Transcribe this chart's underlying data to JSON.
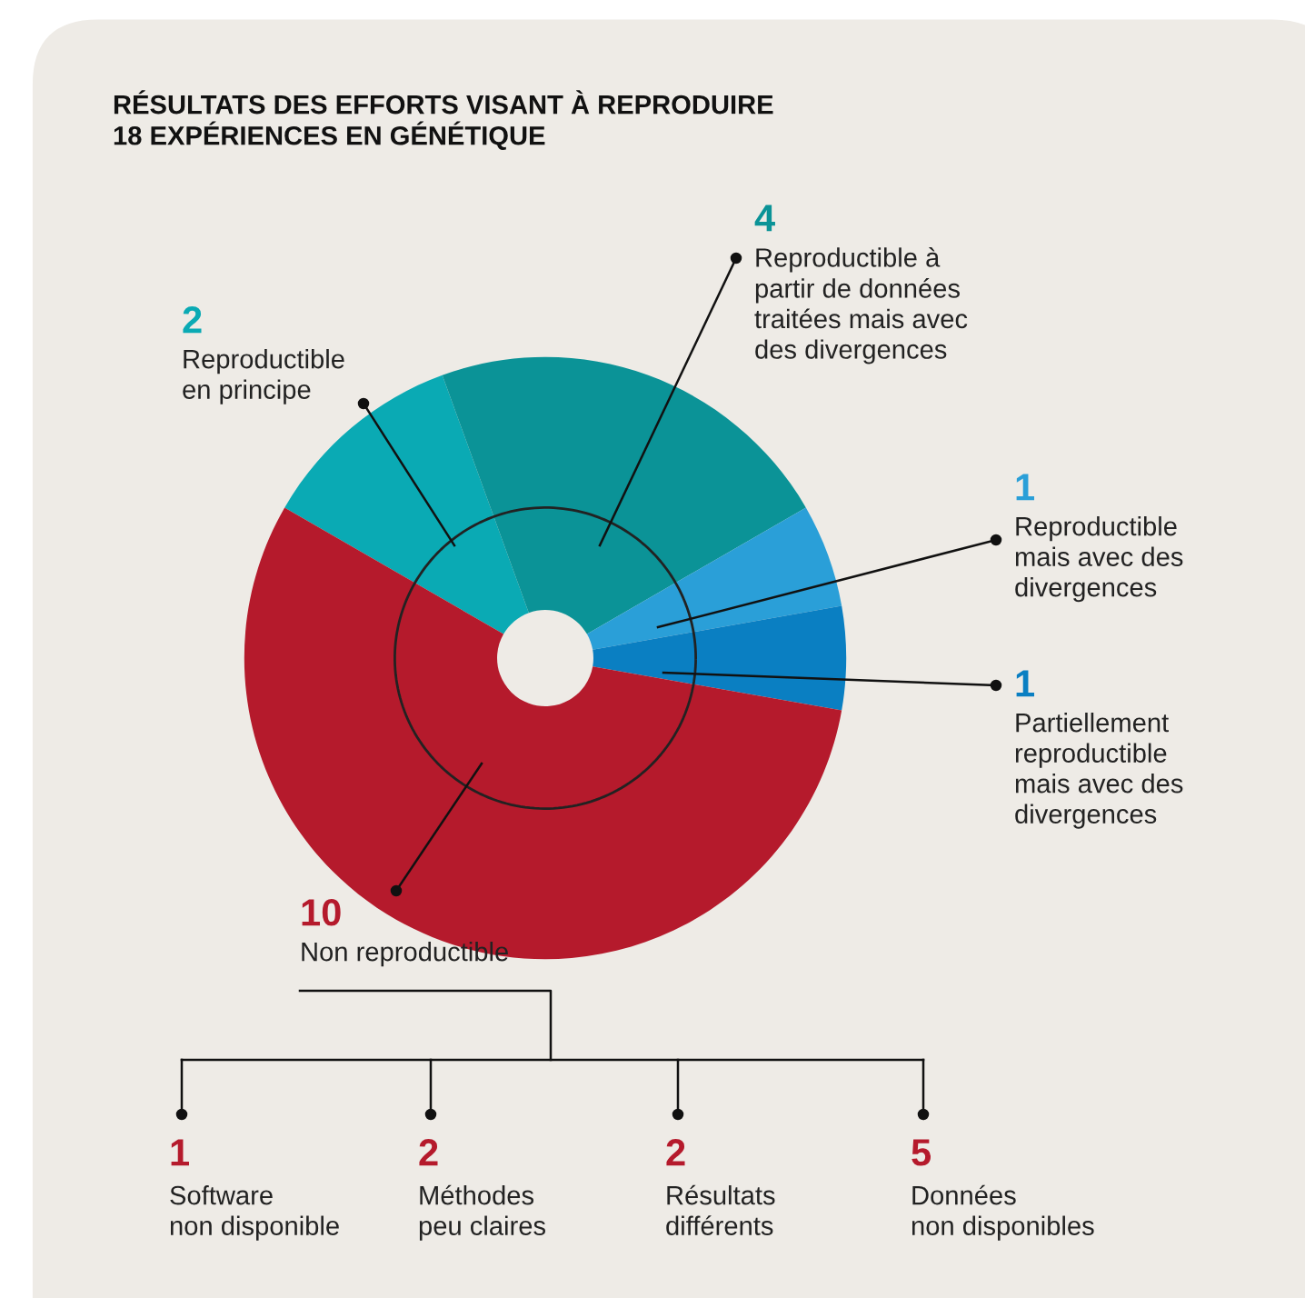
{
  "chart_data": {
    "type": "donut",
    "title": "RÉSULTATS DES EFFORTS VISANT À REPRODUIRE\n18 EXPÉRIENCES EN GÉNÉTIQUE",
    "categories": [
      "Reproductible\nen principe",
      "Reproductible à\npartir de données\ntraitées mais avec\ndes divergences",
      "Reproductible\nmais avec des\ndivergences",
      "Partiellement\nreproductible\nmais avec des\ndivergences",
      "Non reproductible"
    ],
    "values": [
      2,
      4,
      1,
      1,
      10
    ],
    "colors": [
      "#0aaab4",
      "#0b9397",
      "#2a9fd8",
      "#0a7fc2",
      "#b51a2c"
    ],
    "data_labels": true,
    "annotations": [
      "1\nSoftware\nnon disponible",
      "2\nMéthodes\npeu claires",
      "2\nRésultats\ndifférents",
      "5\nDonnées\nnon disponibles"
    ]
  }
}
